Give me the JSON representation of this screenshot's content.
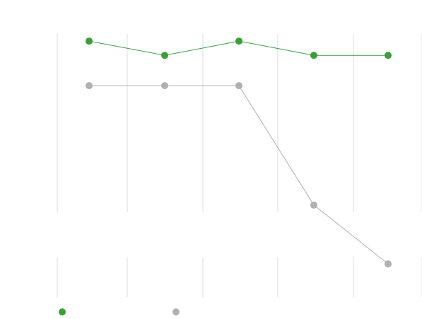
{
  "chart_data": {
    "type": "line",
    "x": [
      1,
      2,
      3,
      4,
      5
    ],
    "ylim": [
      0,
      100
    ],
    "grid": true,
    "legend_position": "bottom-left",
    "series": [
      {
        "color": "#3a9e3a",
        "values": [
          96,
          88,
          96,
          88,
          88
        ]
      },
      {
        "color": "#b0b0b0",
        "values": [
          71,
          71,
          71,
          4,
          -29
        ]
      }
    ]
  }
}
